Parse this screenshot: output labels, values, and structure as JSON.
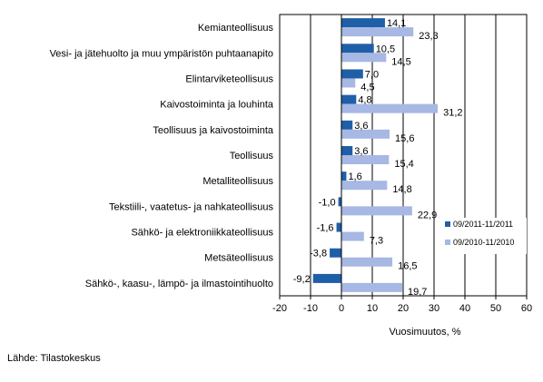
{
  "chart_data": {
    "type": "bar",
    "orientation": "horizontal",
    "categories": [
      "Kemianteollisuus",
      "Vesi- ja jätehuolto ja muu ympäristön puhtaanapito",
      "Elintarviketeollisuus",
      "Kaivostoiminta ja louhinta",
      "Teollisuus ja kaivostoiminta",
      "Teollisuus",
      "Metalliteollisuus",
      "Tekstiili-, vaatetus- ja nahkateollisuus",
      "Sähkö- ja elektroniikkateollisuus",
      "Metsäteollisuus",
      "Sähkö-, kaasu-, lämpö- ja ilmastointihuolto"
    ],
    "series": [
      {
        "name": "09/2011-11/2011",
        "color": "#1f5fa8",
        "values": [
          14.1,
          10.5,
          7.0,
          4.8,
          3.6,
          3.6,
          1.6,
          -1.0,
          -1.6,
          -3.8,
          -9.2
        ],
        "labels": [
          "14,1",
          "10,5",
          "7,0",
          "4,8",
          "3,6",
          "3,6",
          "1,6",
          "-1,0",
          "-1,6",
          "-3,8",
          "-9,2"
        ]
      },
      {
        "name": "09/2010-11/2010",
        "color": "#a6b8e3",
        "values": [
          23.3,
          14.5,
          4.5,
          31.2,
          15.6,
          15.4,
          14.8,
          22.9,
          7.3,
          16.5,
          19.7
        ],
        "labels": [
          "23,3",
          "14,5",
          "4,5",
          "31,2",
          "15,6",
          "15,4",
          "14,8",
          "22,9",
          "7,3",
          "16,5",
          "19,7"
        ]
      }
    ],
    "xlim": [
      -20,
      60
    ],
    "xticks": [
      -20,
      -10,
      0,
      10,
      20,
      30,
      40,
      50,
      60
    ],
    "xlabel": "Vuosimuutos, %",
    "legend_position": "right",
    "grid": "vertical"
  },
  "source_note": "Lähde: Tilastokeskus"
}
